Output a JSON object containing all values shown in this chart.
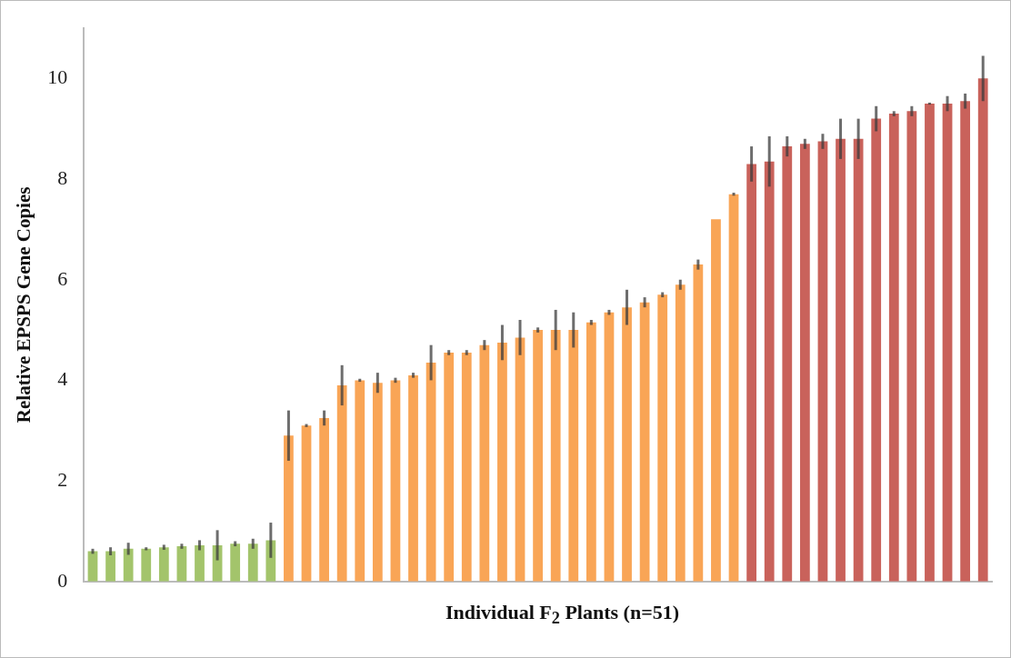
{
  "chart_data": {
    "type": "bar",
    "ylabel": "Relative EPSPS Gene Copies",
    "xlabel": "Individual F$_{2}$ Plants (n=51)",
    "categories": [
      null,
      null,
      null,
      null,
      null,
      null,
      null,
      null,
      null,
      null,
      null,
      null,
      null,
      null,
      null,
      null,
      null,
      null,
      null,
      null,
      null,
      null,
      null,
      null,
      null,
      null,
      null,
      null,
      null,
      null,
      null,
      null,
      null,
      null,
      null,
      null,
      null,
      null,
      null,
      null,
      null,
      null,
      null,
      null,
      null,
      null,
      null,
      null,
      null,
      null,
      null
    ],
    "values": [
      0.6,
      0.6,
      0.65,
      0.65,
      0.68,
      0.7,
      0.72,
      0.72,
      0.75,
      0.75,
      0.82,
      2.9,
      3.1,
      3.25,
      3.9,
      4.0,
      3.95,
      4.0,
      4.1,
      4.35,
      4.55,
      4.55,
      4.7,
      4.75,
      4.85,
      5.0,
      5.0,
      5.0,
      5.15,
      5.35,
      5.45,
      5.55,
      5.7,
      5.9,
      6.3,
      7.2,
      7.7,
      8.3,
      8.35,
      8.65,
      8.7,
      8.75,
      8.8,
      8.8,
      9.2,
      9.3,
      9.35,
      9.5,
      9.5,
      9.55,
      10.0
    ],
    "errors": [
      0.05,
      0.08,
      0.12,
      0.03,
      0.05,
      0.05,
      0.1,
      0.3,
      0.05,
      0.1,
      0.35,
      0.5,
      0.03,
      0.15,
      0.4,
      0.03,
      0.2,
      0.05,
      0.05,
      0.35,
      0.05,
      0.05,
      0.1,
      0.35,
      0.35,
      0.05,
      0.4,
      0.35,
      0.05,
      0.05,
      0.35,
      0.1,
      0.05,
      0.1,
      0.1,
      null,
      0.03,
      0.35,
      0.5,
      0.2,
      0.1,
      0.15,
      0.4,
      0.4,
      0.25,
      0.05,
      0.1,
      0.02,
      0.15,
      0.15,
      0.45
    ],
    "colors": [
      "#a3c46b",
      "#a3c46b",
      "#a3c46b",
      "#a3c46b",
      "#a3c46b",
      "#a3c46b",
      "#a3c46b",
      "#a3c46b",
      "#a3c46b",
      "#a3c46b",
      "#a3c46b",
      "#f9a556",
      "#f9a556",
      "#f9a556",
      "#f9a556",
      "#f9a556",
      "#f9a556",
      "#f9a556",
      "#f9a556",
      "#f9a556",
      "#f9a556",
      "#f9a556",
      "#f9a556",
      "#f9a556",
      "#f9a556",
      "#f9a556",
      "#f9a556",
      "#f9a556",
      "#f9a556",
      "#f9a556",
      "#f9a556",
      "#f9a556",
      "#f9a556",
      "#f9a556",
      "#f9a556",
      "#f9a556",
      "#f9a556",
      "#c9625b",
      "#c9625b",
      "#c9625b",
      "#c9625b",
      "#c9625b",
      "#c9625b",
      "#c9625b",
      "#c9625b",
      "#c9625b",
      "#c9625b",
      "#c9625b",
      "#c9625b",
      "#c9625b",
      "#c9625b"
    ],
    "ylim": [
      0,
      11
    ],
    "yticks": [
      0,
      2,
      4,
      6,
      8,
      10
    ],
    "grid": false,
    "legend": false
  }
}
